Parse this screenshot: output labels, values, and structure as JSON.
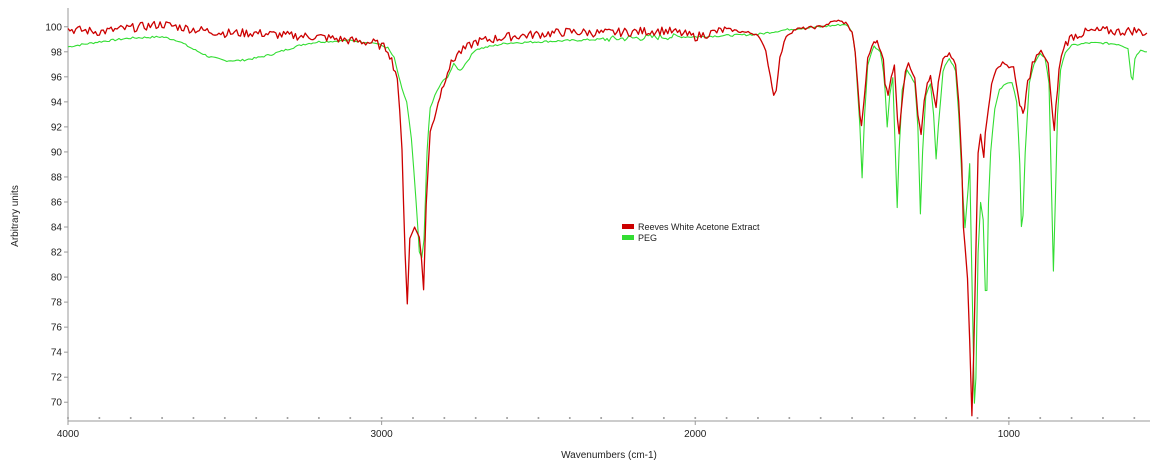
{
  "chart_data": {
    "type": "line",
    "xlabel": "Wavenumbers (cm-1)",
    "ylabel": "Arbitrary units",
    "xlim": [
      4000,
      550
    ],
    "ylim": [
      68.5,
      101.5
    ],
    "x_ticks": [
      4000,
      3000,
      2000,
      1000
    ],
    "y_ticks": [
      70,
      72,
      74,
      76,
      78,
      80,
      82,
      84,
      86,
      88,
      90,
      92,
      94,
      96,
      98,
      100
    ],
    "grid": false,
    "legend_position": "center",
    "series": [
      {
        "name": "Reeves White Acetone Extract",
        "color": "#cc0000",
        "points": [
          [
            4000,
            99.8
          ],
          [
            3900,
            99.6
          ],
          [
            3800,
            99.9
          ],
          [
            3700,
            100.2
          ],
          [
            3600,
            99.8
          ],
          [
            3500,
            99.5
          ],
          [
            3400,
            99.5
          ],
          [
            3300,
            99.3
          ],
          [
            3200,
            99.2
          ],
          [
            3100,
            98.9
          ],
          [
            3020,
            98.7
          ],
          [
            2980,
            98.2
          ],
          [
            2950,
            96.0
          ],
          [
            2935,
            90.0
          ],
          [
            2925,
            82.0
          ],
          [
            2918,
            78.0
          ],
          [
            2910,
            83.0
          ],
          [
            2895,
            84.0
          ],
          [
            2880,
            83.5
          ],
          [
            2866,
            79.0
          ],
          [
            2858,
            86.0
          ],
          [
            2845,
            91.5
          ],
          [
            2820,
            94.0
          ],
          [
            2790,
            96.5
          ],
          [
            2760,
            97.8
          ],
          [
            2700,
            98.8
          ],
          [
            2600,
            99.2
          ],
          [
            2500,
            99.4
          ],
          [
            2400,
            99.6
          ],
          [
            2300,
            99.5
          ],
          [
            2200,
            99.6
          ],
          [
            2100,
            99.7
          ],
          [
            2050,
            99.5
          ],
          [
            2000,
            99.2
          ],
          [
            1950,
            99.5
          ],
          [
            1900,
            99.8
          ],
          [
            1850,
            99.6
          ],
          [
            1800,
            99.4
          ],
          [
            1775,
            98.0
          ],
          [
            1760,
            96.0
          ],
          [
            1750,
            94.5
          ],
          [
            1742,
            95.0
          ],
          [
            1730,
            97.5
          ],
          [
            1710,
            99.3
          ],
          [
            1680,
            99.8
          ],
          [
            1600,
            100.0
          ],
          [
            1550,
            100.5
          ],
          [
            1520,
            100.3
          ],
          [
            1500,
            99.6
          ],
          [
            1490,
            98.0
          ],
          [
            1475,
            93.0
          ],
          [
            1470,
            92.0
          ],
          [
            1462,
            94.0
          ],
          [
            1450,
            97.5
          ],
          [
            1430,
            98.8
          ],
          [
            1420,
            98.8
          ],
          [
            1400,
            97.5
          ],
          [
            1395,
            95.5
          ],
          [
            1385,
            94.5
          ],
          [
            1375,
            96.0
          ],
          [
            1365,
            97.0
          ],
          [
            1355,
            92.5
          ],
          [
            1350,
            91.5
          ],
          [
            1345,
            93.0
          ],
          [
            1330,
            96.5
          ],
          [
            1320,
            97.0
          ],
          [
            1300,
            96.0
          ],
          [
            1290,
            93.0
          ],
          [
            1280,
            91.5
          ],
          [
            1270,
            94.0
          ],
          [
            1260,
            95.5
          ],
          [
            1250,
            96.0
          ],
          [
            1240,
            94.5
          ],
          [
            1232,
            93.5
          ],
          [
            1225,
            95.5
          ],
          [
            1210,
            97.5
          ],
          [
            1190,
            97.8
          ],
          [
            1170,
            97.0
          ],
          [
            1160,
            94.0
          ],
          [
            1150,
            89.0
          ],
          [
            1145,
            84.0
          ],
          [
            1140,
            82.5
          ],
          [
            1132,
            80.0
          ],
          [
            1125,
            75.0
          ],
          [
            1118,
            69.0
          ],
          [
            1112,
            74.0
          ],
          [
            1105,
            82.0
          ],
          [
            1098,
            90.0
          ],
          [
            1090,
            91.5
          ],
          [
            1085,
            90.5
          ],
          [
            1080,
            89.5
          ],
          [
            1075,
            91.5
          ],
          [
            1065,
            93.5
          ],
          [
            1055,
            95.5
          ],
          [
            1040,
            96.5
          ],
          [
            1020,
            97.2
          ],
          [
            1000,
            96.8
          ],
          [
            985,
            96.5
          ],
          [
            975,
            95.5
          ],
          [
            965,
            93.5
          ],
          [
            955,
            93.0
          ],
          [
            950,
            93.5
          ],
          [
            940,
            95.5
          ],
          [
            925,
            97.0
          ],
          [
            905,
            97.8
          ],
          [
            890,
            97.9
          ],
          [
            875,
            97.0
          ],
          [
            860,
            92.5
          ],
          [
            855,
            92.0
          ],
          [
            850,
            93.5
          ],
          [
            840,
            96.5
          ],
          [
            825,
            98.5
          ],
          [
            800,
            99.2
          ],
          [
            750,
            99.6
          ],
          [
            700,
            99.7
          ],
          [
            650,
            99.6
          ],
          [
            600,
            99.7
          ],
          [
            560,
            99.5
          ]
        ]
      },
      {
        "name": "PEG",
        "color": "#33dd33",
        "points": [
          [
            4000,
            98.4
          ],
          [
            3900,
            98.8
          ],
          [
            3800,
            99.1
          ],
          [
            3700,
            99.2
          ],
          [
            3650,
            98.9
          ],
          [
            3600,
            98.2
          ],
          [
            3550,
            97.6
          ],
          [
            3500,
            97.3
          ],
          [
            3450,
            97.3
          ],
          [
            3400,
            97.5
          ],
          [
            3350,
            97.8
          ],
          [
            3300,
            98.2
          ],
          [
            3250,
            98.6
          ],
          [
            3200,
            98.8
          ],
          [
            3100,
            98.9
          ],
          [
            3020,
            98.7
          ],
          [
            2980,
            98.3
          ],
          [
            2960,
            97.5
          ],
          [
            2945,
            96.0
          ],
          [
            2935,
            95.0
          ],
          [
            2920,
            94.0
          ],
          [
            2905,
            91.0
          ],
          [
            2890,
            86.0
          ],
          [
            2880,
            82.0
          ],
          [
            2872,
            81.5
          ],
          [
            2865,
            83.0
          ],
          [
            2855,
            90.0
          ],
          [
            2850,
            92.0
          ],
          [
            2845,
            93.5
          ],
          [
            2830,
            94.5
          ],
          [
            2810,
            95.5
          ],
          [
            2790,
            96.0
          ],
          [
            2770,
            97.0
          ],
          [
            2750,
            96.5
          ],
          [
            2740,
            96.8
          ],
          [
            2720,
            97.5
          ],
          [
            2700,
            98.2
          ],
          [
            2600,
            98.7
          ],
          [
            2500,
            98.8
          ],
          [
            2400,
            98.9
          ],
          [
            2300,
            99.0
          ],
          [
            2200,
            99.1
          ],
          [
            2100,
            99.2
          ],
          [
            2000,
            99.2
          ],
          [
            1900,
            99.3
          ],
          [
            1800,
            99.4
          ],
          [
            1700,
            99.8
          ],
          [
            1600,
            100.0
          ],
          [
            1520,
            100.2
          ],
          [
            1500,
            99.6
          ],
          [
            1490,
            98.0
          ],
          [
            1475,
            92.0
          ],
          [
            1468,
            88.0
          ],
          [
            1460,
            93.0
          ],
          [
            1450,
            97.0
          ],
          [
            1430,
            98.5
          ],
          [
            1410,
            98.0
          ],
          [
            1400,
            96.5
          ],
          [
            1395,
            95.0
          ],
          [
            1388,
            92.0
          ],
          [
            1380,
            94.5
          ],
          [
            1370,
            96.0
          ],
          [
            1362,
            90.0
          ],
          [
            1356,
            85.5
          ],
          [
            1350,
            90.0
          ],
          [
            1340,
            95.0
          ],
          [
            1325,
            96.5
          ],
          [
            1300,
            95.5
          ],
          [
            1290,
            92.0
          ],
          [
            1282,
            85.0
          ],
          [
            1275,
            90.0
          ],
          [
            1265,
            94.5
          ],
          [
            1250,
            95.5
          ],
          [
            1240,
            93.0
          ],
          [
            1232,
            89.5
          ],
          [
            1225,
            92.0
          ],
          [
            1210,
            96.5
          ],
          [
            1190,
            97.5
          ],
          [
            1170,
            96.5
          ],
          [
            1160,
            93.0
          ],
          [
            1150,
            88.0
          ],
          [
            1140,
            84.0
          ],
          [
            1130,
            87.0
          ],
          [
            1125,
            89.0
          ],
          [
            1118,
            80.0
          ],
          [
            1110,
            70.0
          ],
          [
            1105,
            72.0
          ],
          [
            1098,
            82.0
          ],
          [
            1090,
            86.0
          ],
          [
            1082,
            84.5
          ],
          [
            1075,
            79.0
          ],
          [
            1070,
            79.0
          ],
          [
            1065,
            86.0
          ],
          [
            1058,
            90.0
          ],
          [
            1045,
            93.5
          ],
          [
            1030,
            95.0
          ],
          [
            1010,
            95.5
          ],
          [
            990,
            95.5
          ],
          [
            975,
            94.0
          ],
          [
            965,
            89.0
          ],
          [
            960,
            84.0
          ],
          [
            955,
            85.0
          ],
          [
            948,
            90.0
          ],
          [
            935,
            95.5
          ],
          [
            920,
            97.0
          ],
          [
            900,
            97.8
          ],
          [
            885,
            97.6
          ],
          [
            872,
            95.5
          ],
          [
            865,
            88.0
          ],
          [
            858,
            80.5
          ],
          [
            852,
            86.0
          ],
          [
            845,
            93.0
          ],
          [
            835,
            96.5
          ],
          [
            820,
            98.0
          ],
          [
            800,
            98.5
          ],
          [
            750,
            98.7
          ],
          [
            700,
            98.7
          ],
          [
            650,
            98.6
          ],
          [
            620,
            98.3
          ],
          [
            610,
            96.0
          ],
          [
            605,
            95.8
          ],
          [
            598,
            97.5
          ],
          [
            580,
            98.2
          ],
          [
            560,
            98.0
          ]
        ]
      }
    ]
  }
}
